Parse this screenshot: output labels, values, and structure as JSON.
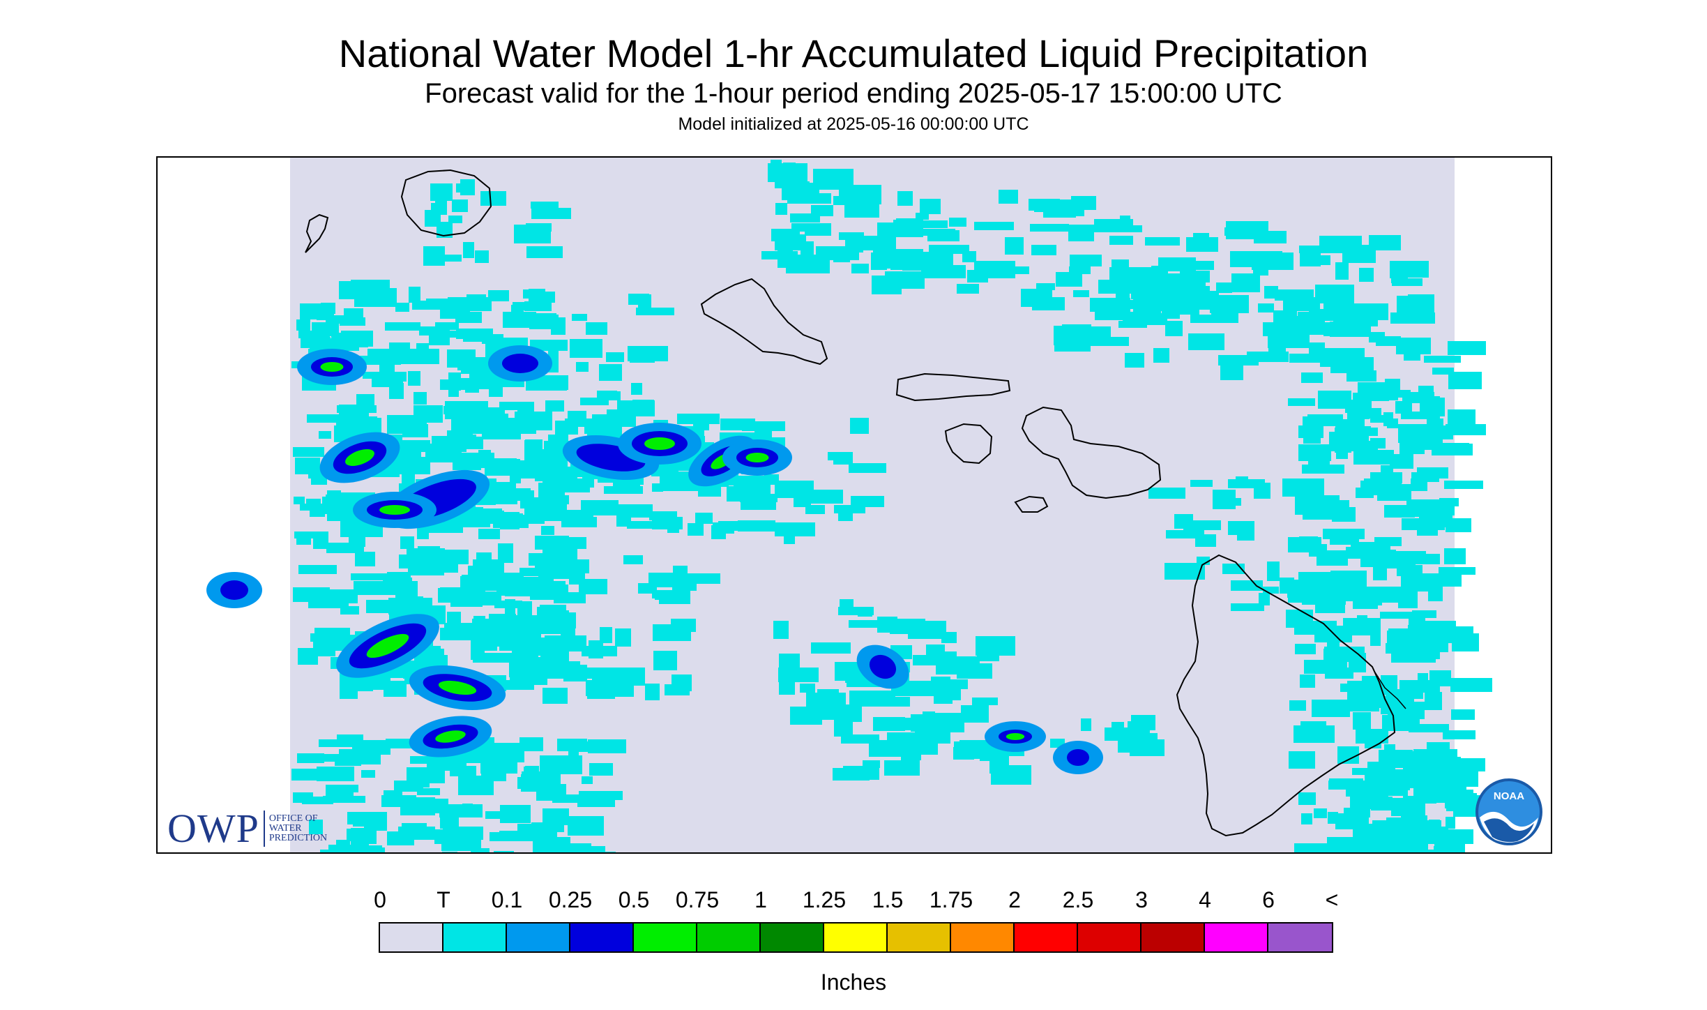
{
  "header": {
    "title": "National Water Model 1-hr Accumulated Liquid Precipitation",
    "subtitle": "Forecast valid for the 1-hour period ending 2025-05-17 15:00:00 UTC",
    "init_line": "Model initialized at 2025-05-16 00:00:00 UTC"
  },
  "map": {
    "region": "Hawaiian Islands",
    "background_color": "#dcdcec",
    "coast_color": "#000000",
    "precip_colors": {
      "trace": "#00e5e5",
      "tenth": "#0099ee",
      "quarter": "#0000dd",
      "half": "#00ee00",
      "three_quarter": "#00cc00"
    }
  },
  "logos": {
    "owp": {
      "mark": "OWP",
      "line1": "OFFICE OF",
      "line2": "WATER",
      "line3": "PREDICTION"
    },
    "noaa": {
      "text": "NOAA"
    }
  },
  "legend": {
    "labels": [
      "0",
      "T",
      "0.1",
      "0.25",
      "0.5",
      "0.75",
      "1",
      "1.25",
      "1.5",
      "1.75",
      "2",
      "2.5",
      "3",
      "4",
      "6",
      "<"
    ],
    "colors": [
      "#dcdcec",
      "#00e5e5",
      "#0099ee",
      "#0000dd",
      "#00ee00",
      "#00cc00",
      "#008800",
      "#ffff00",
      "#e6c000",
      "#ff8800",
      "#ff0000",
      "#dd0000",
      "#bb0000",
      "#ff00ff",
      "#9955cc"
    ],
    "units": "Inches"
  }
}
